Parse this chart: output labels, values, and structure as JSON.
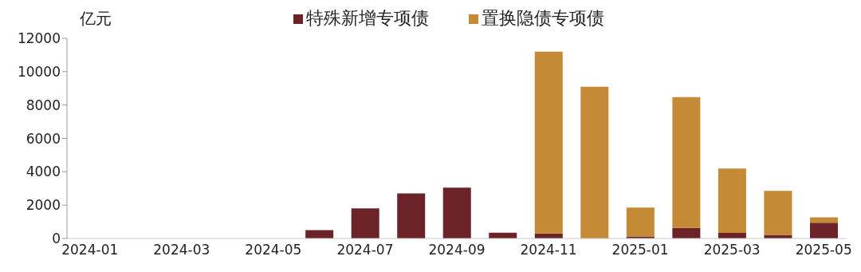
{
  "chart_data": {
    "type": "bar",
    "stacked": true,
    "ylabel": "亿元",
    "legend": "top",
    "categories": [
      "2024-01",
      null,
      "2024-03",
      null,
      "2024-05",
      null,
      "2024-07",
      null,
      "2024-09",
      null,
      "2024-11",
      null,
      "2025-01",
      null,
      "2025-03",
      null,
      "2025-05"
    ],
    "series": [
      {
        "name": "特殊新增专项债",
        "color": "#6b2328",
        "values": [
          0,
          0,
          0,
          0,
          0,
          500,
          1800,
          2700,
          3050,
          350,
          300,
          0,
          120,
          630,
          340,
          220,
          950
        ]
      },
      {
        "name": "置换隐债专项债",
        "color": "#c48a35",
        "values": [
          0,
          0,
          0,
          0,
          0,
          0,
          0,
          0,
          0,
          0,
          10900,
          9100,
          1730,
          7840,
          3860,
          2640,
          320
        ]
      }
    ],
    "ylim": [
      0,
      12000
    ],
    "yticks": [
      0,
      2000,
      4000,
      6000,
      8000,
      10000,
      12000
    ],
    "grid": false
  }
}
